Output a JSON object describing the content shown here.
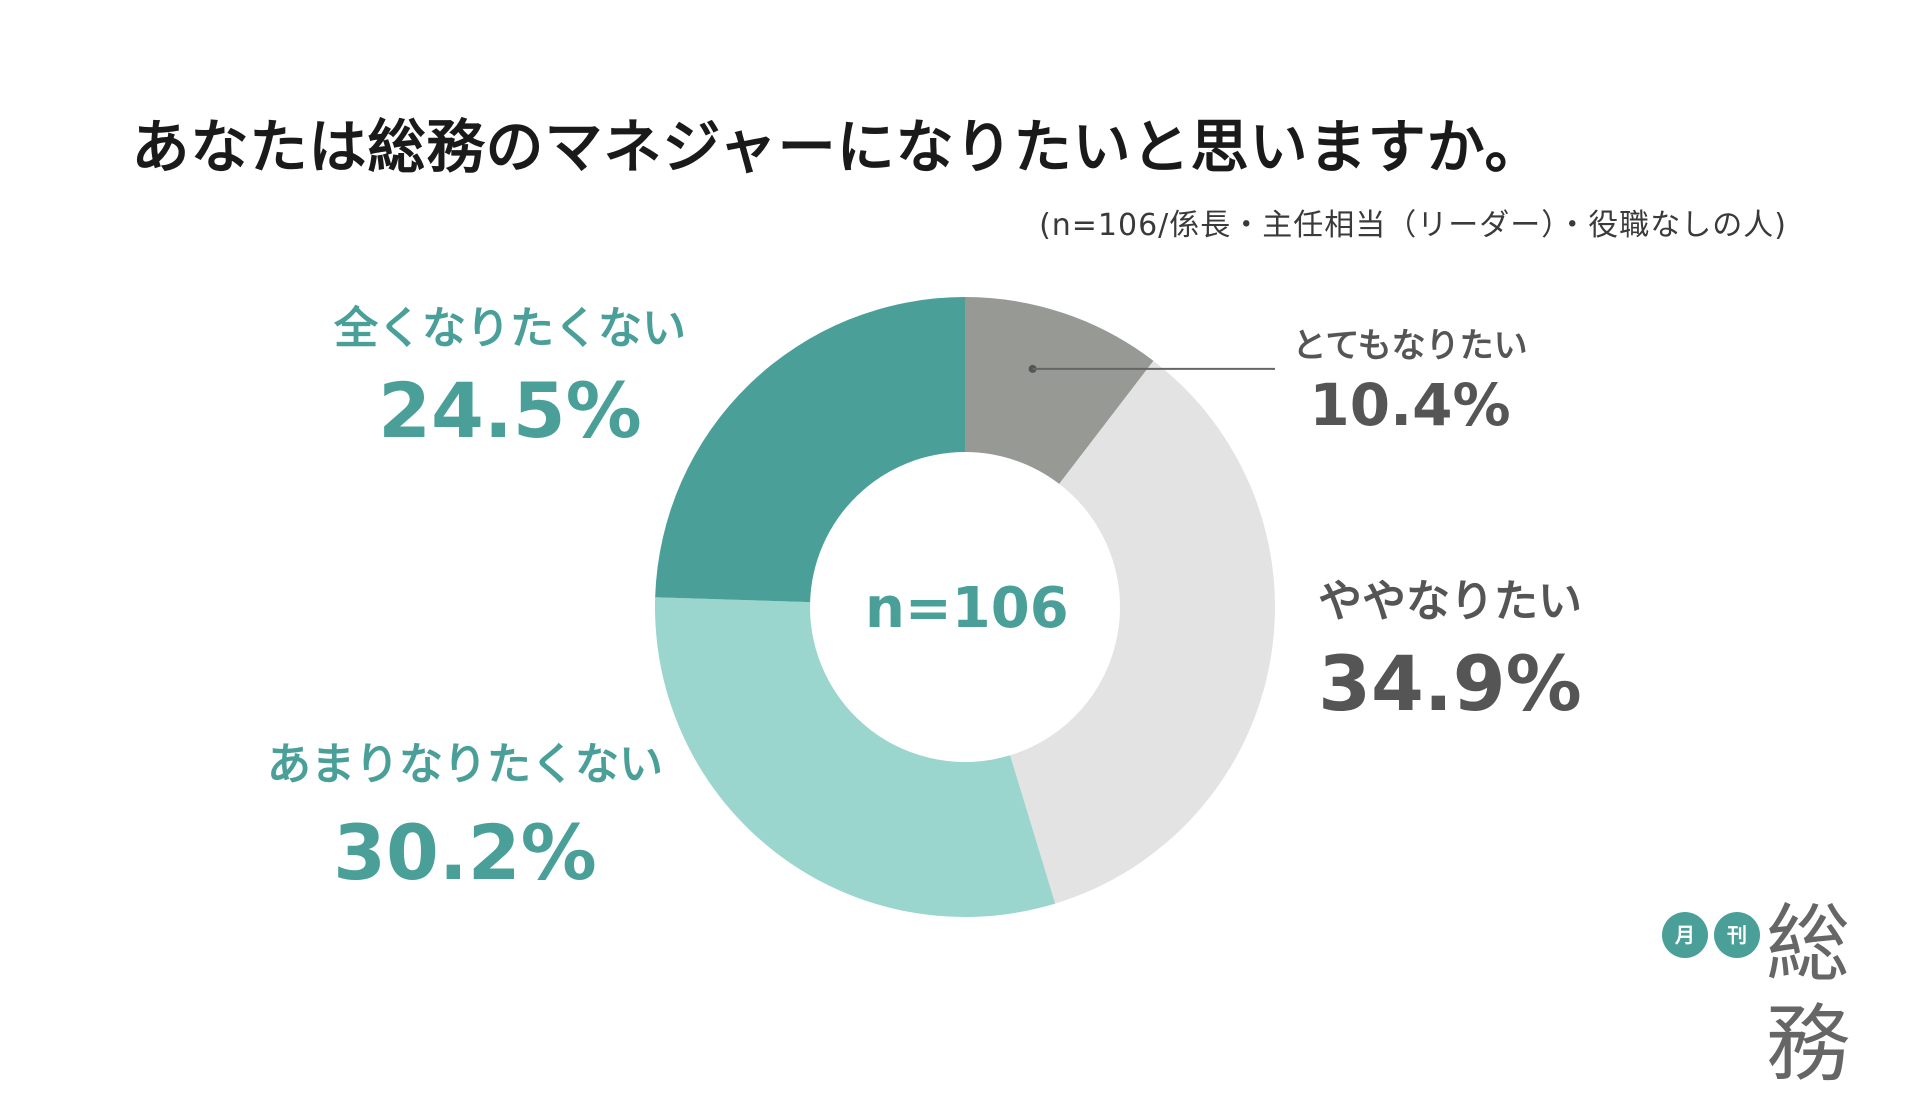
{
  "header": {
    "title": "あなたは総務のマネジャーになりたいと思いますか。",
    "subtitle": "(n=106/係長・主任相当（リーダー）・役職なしの人)"
  },
  "center_label": "n=106",
  "logo": {
    "badge_1": "月",
    "badge_2": "刊",
    "word": "総務"
  },
  "colors": {
    "teal_dark": "#4aa099",
    "teal_light": "#9ad6cd",
    "gray_dark": "#979994",
    "gray_light": "#e3e3e3"
  },
  "labels": [
    {
      "name": "とてもなりたい",
      "pct": "10.4%"
    },
    {
      "name": "ややなりたい",
      "pct": "34.9%"
    },
    {
      "name": "あまりなりたくない",
      "pct": "30.2%"
    },
    {
      "name": "全くなりたくない",
      "pct": "24.5%"
    }
  ],
  "chart_data": {
    "type": "pie",
    "title": "あなたは総務のマネジャーになりたいと思いますか。",
    "subtitle": "(n=106/係長・主任相当（リーダー）・役職なしの人)",
    "donut": true,
    "center_text": "n=106",
    "slices": [
      {
        "label": "とてもなりたい",
        "value": 10.4,
        "color": "#979994"
      },
      {
        "label": "ややなりたい",
        "value": 34.9,
        "color": "#e3e3e3"
      },
      {
        "label": "あまりなりたくない",
        "value": 30.2,
        "color": "#9ad6cd"
      },
      {
        "label": "全くなりたくない",
        "value": 24.5,
        "color": "#4aa099"
      }
    ]
  }
}
